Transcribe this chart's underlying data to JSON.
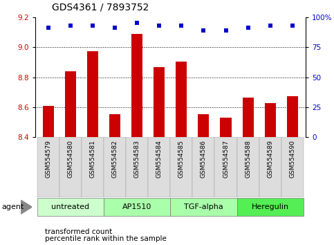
{
  "title": "GDS4361 / 7893752",
  "samples": [
    "GSM554579",
    "GSM554580",
    "GSM554581",
    "GSM554582",
    "GSM554583",
    "GSM554584",
    "GSM554585",
    "GSM554586",
    "GSM554587",
    "GSM554588",
    "GSM554589",
    "GSM554590"
  ],
  "bar_values": [
    8.61,
    8.84,
    8.975,
    8.555,
    9.09,
    8.865,
    8.905,
    8.555,
    8.53,
    8.665,
    8.625,
    8.675
  ],
  "percentile_values": [
    91,
    93,
    93,
    91,
    95,
    93,
    93,
    89,
    89,
    91,
    93,
    93
  ],
  "bar_color": "#cc0000",
  "dot_color": "#0000cc",
  "ylim_left": [
    8.4,
    9.2
  ],
  "ylim_right": [
    0,
    100
  ],
  "yticks_left": [
    8.4,
    8.6,
    8.8,
    9.0,
    9.2
  ],
  "yticks_right": [
    0,
    25,
    50,
    75,
    100
  ],
  "ytick_labels_right": [
    "0",
    "25",
    "50",
    "75",
    "100%"
  ],
  "groups": [
    {
      "label": "untreated",
      "start": 0,
      "end": 3
    },
    {
      "label": "AP1510",
      "start": 3,
      "end": 6
    },
    {
      "label": "TGF-alpha",
      "start": 6,
      "end": 9
    },
    {
      "label": "Heregulin",
      "start": 9,
      "end": 12
    }
  ],
  "group_colors": [
    "#ccffcc",
    "#aaffaa",
    "#aaffaa",
    "#55ee55"
  ],
  "agent_label": "agent",
  "legend_red_label": "transformed count",
  "legend_blue_label": "percentile rank within the sample",
  "tick_label_color_left": "#cc0000",
  "tick_label_color_right": "#0000cc",
  "title_fontsize": 10,
  "tick_fontsize": 7.5,
  "xticklabel_fontsize": 6.5,
  "group_fontsize": 8,
  "legend_fontsize": 7.5,
  "grid_vals": [
    8.6,
    8.8,
    9.0
  ],
  "bar_width": 0.5
}
